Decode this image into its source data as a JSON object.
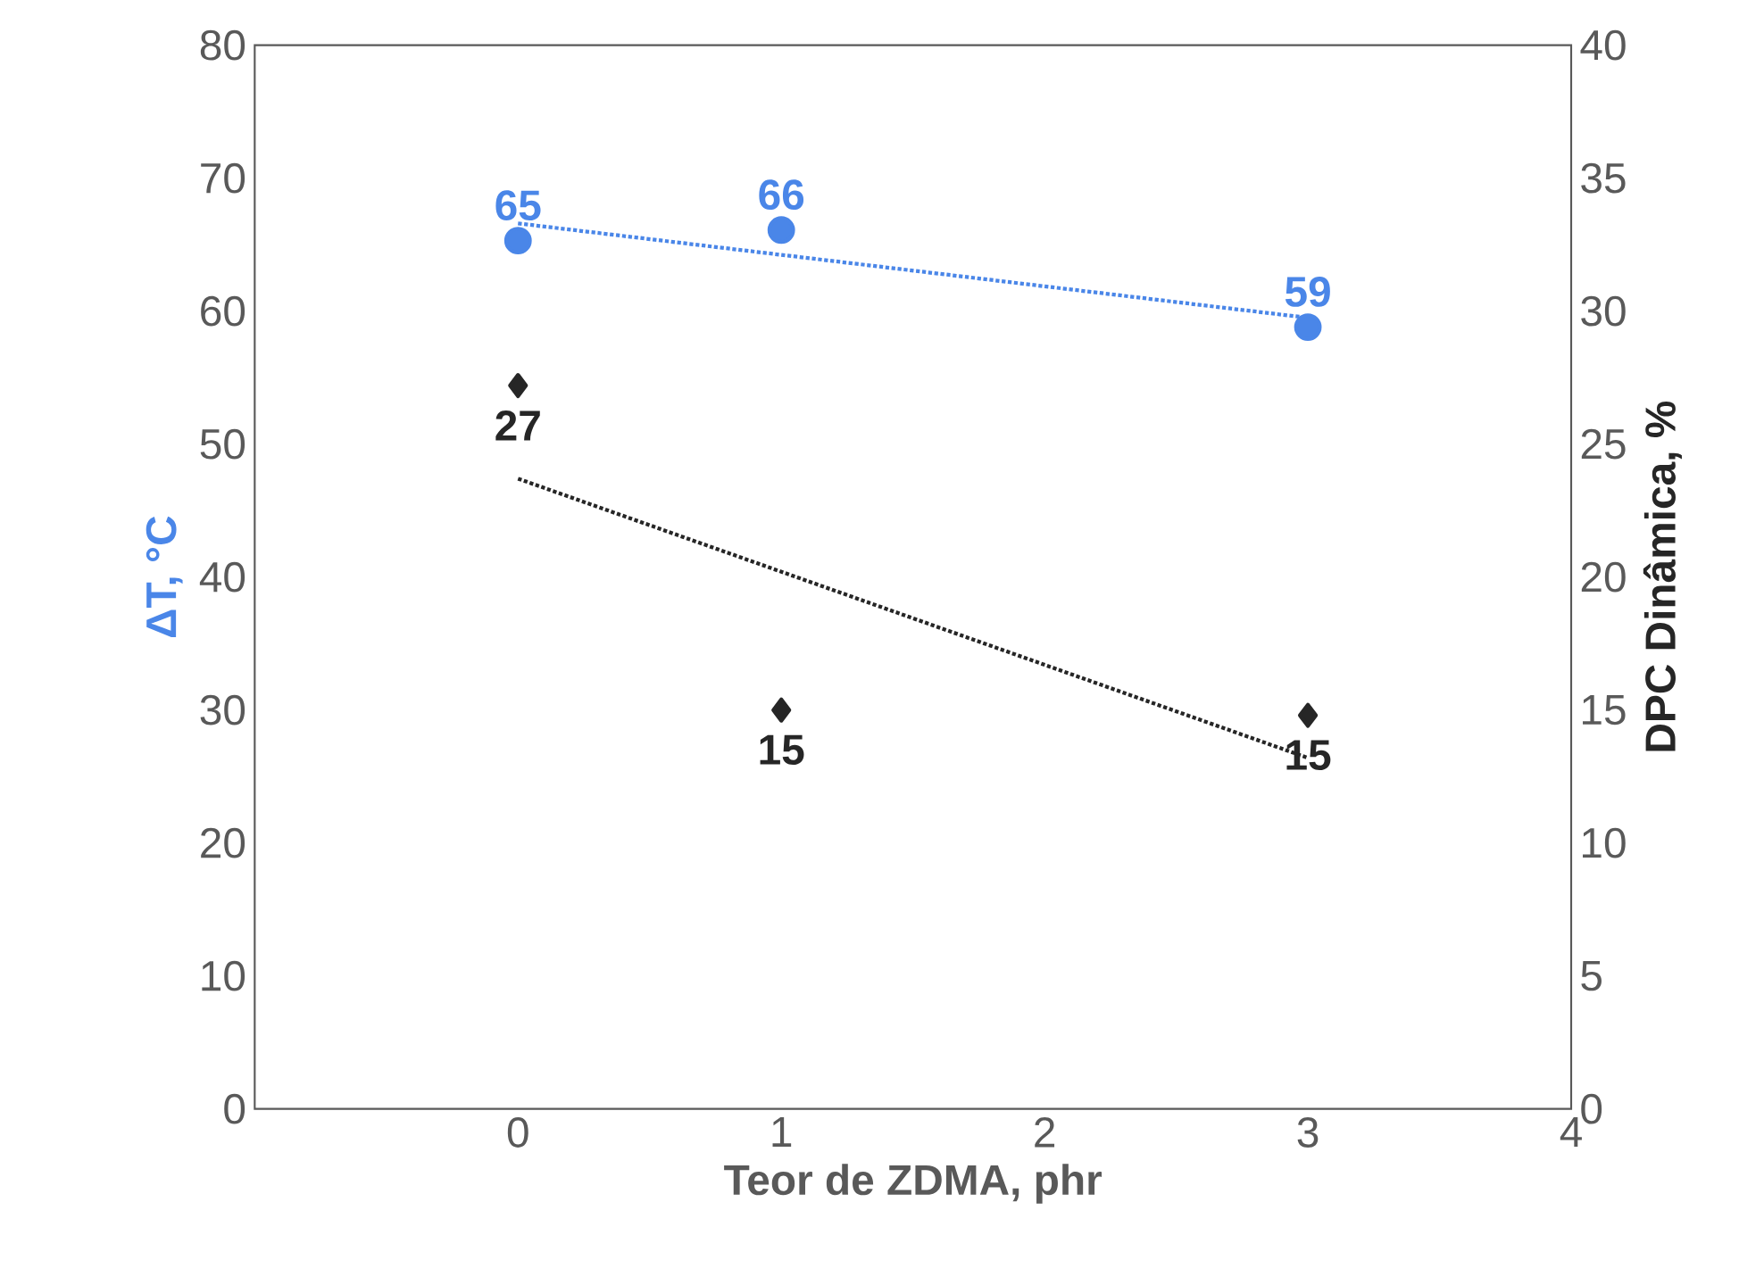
{
  "chart_data": {
    "type": "scatter",
    "xlabel": "Teor de ZDMA, phr",
    "ylabel": "ΔT, °C",
    "y2label": "DPC Dinâmica, %",
    "xlim": [
      -1,
      4
    ],
    "xticks": [
      0,
      1,
      2,
      3,
      4
    ],
    "ylim": [
      0,
      80
    ],
    "yticks": [
      0,
      10,
      20,
      30,
      40,
      50,
      60,
      70,
      80
    ],
    "y2lim": [
      0,
      40
    ],
    "y2ticks": [
      0,
      5,
      10,
      15,
      20,
      25,
      30,
      35,
      40
    ],
    "series": [
      {
        "color": "#4a86e8",
        "marker": "circle",
        "x": [
          0,
          1,
          3
        ],
        "values": [
          65.3,
          66.1,
          58.8
        ],
        "value_labels": [
          "65",
          "66",
          "59"
        ]
      },
      {
        "type": "line",
        "color": "#4a86e8",
        "marker": "none",
        "line_style": "dotted",
        "x": [
          0,
          3
        ],
        "values": [
          66.6,
          59.5
        ]
      },
      {
        "axis": "y2",
        "color": "#262626",
        "marker": "diamond",
        "x": [
          0,
          1,
          3
        ],
        "values": [
          27.2,
          15.0,
          14.8
        ],
        "value_labels": [
          "27",
          "15",
          "15"
        ]
      },
      {
        "type": "line",
        "axis": "y2",
        "color": "#262626",
        "marker": "none",
        "line_style": "dotted",
        "x": [
          0,
          3
        ],
        "values": [
          23.7,
          13.2
        ]
      }
    ]
  }
}
